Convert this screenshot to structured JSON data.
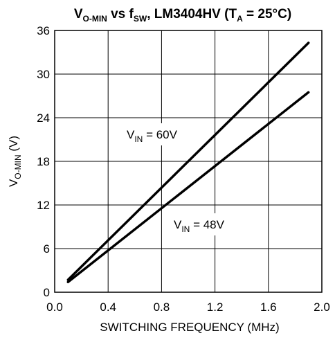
{
  "chart_data": {
    "type": "line",
    "title": {
      "main": "V",
      "main_sub": "O-MIN",
      "mid": " vs f",
      "mid_sub": "SW",
      "tail": ", LM3404HV (T",
      "tail_sub": "A",
      "end": " = 25°C)"
    },
    "xlabel": "SWITCHING FREQUENCY  (MHz)",
    "ylabel": {
      "main": "V",
      "sub": "O-MIN",
      "tail": " (V)"
    },
    "xlim": [
      0,
      2.0
    ],
    "ylim": [
      0,
      36
    ],
    "xticks": [
      "0.0",
      "0.4",
      "0.8",
      "1.2",
      "1.6",
      "2.0"
    ],
    "yticks": [
      "0",
      "6",
      "12",
      "18",
      "24",
      "30",
      "36"
    ],
    "grid": true,
    "series": [
      {
        "name": "V_IN = 60V",
        "label": {
          "pre": "V",
          "sub": "IN",
          "post": " = 60V"
        },
        "x": [
          0.1,
          1.9
        ],
        "y": [
          1.7,
          34.3
        ]
      },
      {
        "name": "V_IN = 48V",
        "label": {
          "pre": "V",
          "sub": "IN",
          "post": " = 48V"
        },
        "x": [
          0.1,
          1.9
        ],
        "y": [
          1.4,
          27.5
        ]
      }
    ]
  }
}
